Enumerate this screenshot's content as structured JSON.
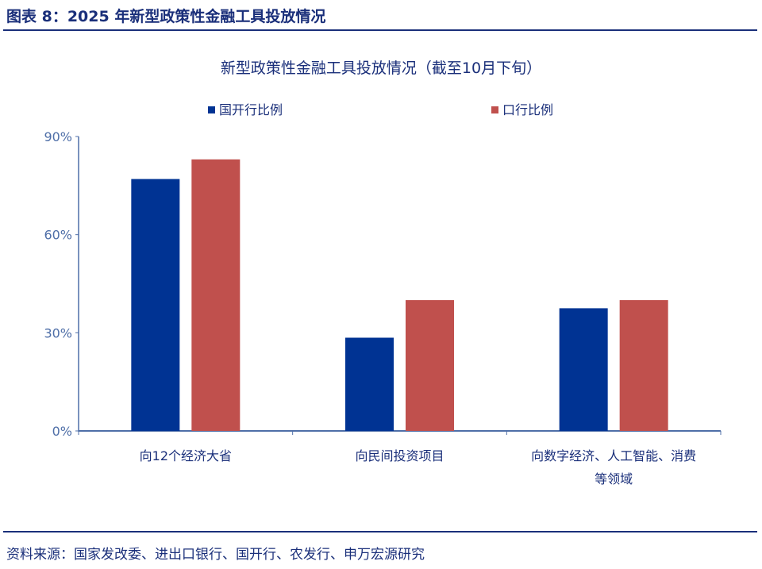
{
  "header": {
    "title": "图表 8：2025 年新型政策性金融工具投放情况"
  },
  "footer": {
    "source": "资料来源：国家发改委、进出口银行、国开行、农发行、申万宏源研究"
  },
  "chart_data": {
    "type": "bar",
    "title": "新型政策性金融工具投放情况（截至10月下旬）",
    "categories": [
      [
        "向12个经济大省"
      ],
      [
        "向民间投资项目"
      ],
      [
        "向数字经济、人工智能、消费",
        "等领域"
      ]
    ],
    "series": [
      {
        "name": "国开行比例",
        "color": "#003393",
        "values": [
          77,
          28.5,
          37.5
        ]
      },
      {
        "name": "口行比例",
        "color": "#C0504D",
        "values": [
          83,
          40,
          40
        ]
      }
    ],
    "ylim": [
      0,
      90
    ],
    "yticks": [
      0,
      30,
      60,
      90
    ],
    "ytick_labels": [
      "0%",
      "30%",
      "60%",
      "90%"
    ],
    "grid": false,
    "legend": "top",
    "axis_color": "#4F6FA8"
  }
}
